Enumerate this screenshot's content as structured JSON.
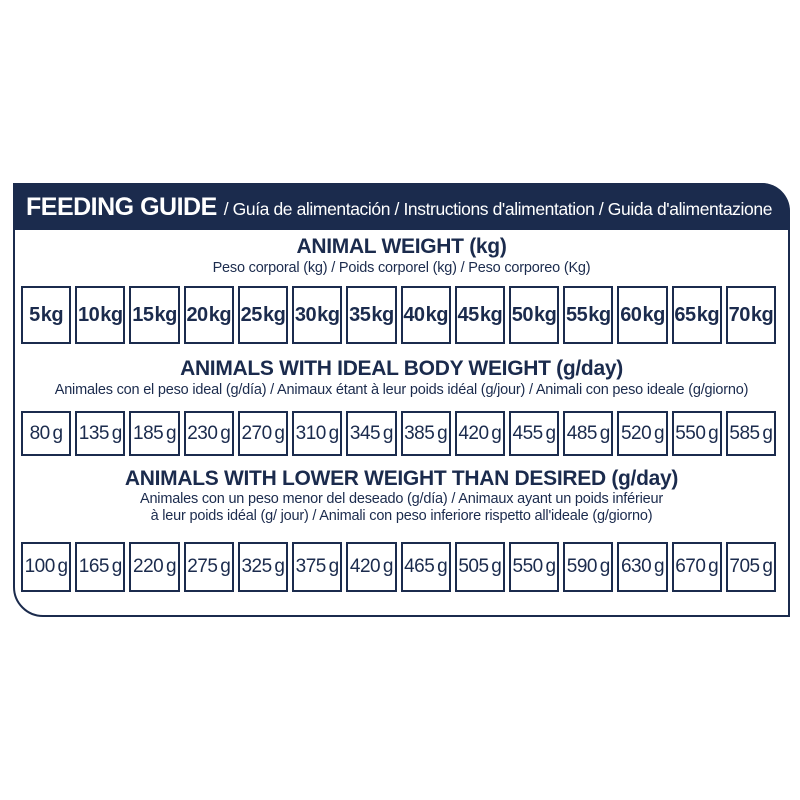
{
  "colors": {
    "navy": "#1b2b4d",
    "background": "#ffffff"
  },
  "header": {
    "title": "FEEDING GUIDE",
    "translations": "/ Guía de alimentación / Instructions d'alimentation / Guida d'alimentazione"
  },
  "animal_weight": {
    "title": "ANIMAL WEIGHT (kg)",
    "subtitle": "Peso corporal (kg) / Poids corporel (kg) / Peso corporeo (Kg)",
    "values": [
      "5 kg",
      "10 kg",
      "15 kg",
      "20 kg",
      "25 kg",
      "30 kg",
      "35 kg",
      "40 kg",
      "45 kg",
      "50 kg",
      "55 kg",
      "60 kg",
      "65 kg",
      "70 kg"
    ]
  },
  "ideal_body_weight": {
    "title": "ANIMALS WITH IDEAL BODY WEIGHT (g/day)",
    "subtitle": "Animales con el peso ideal (g/día) / Animaux étant à leur poids idéal (g/jour) / Animali con peso ideale (g/giorno)",
    "values": [
      "80 g",
      "135 g",
      "185 g",
      "230 g",
      "270 g",
      "310 g",
      "345 g",
      "385 g",
      "420 g",
      "455 g",
      "485 g",
      "520 g",
      "550 g",
      "585 g"
    ]
  },
  "lower_weight": {
    "title": "ANIMALS WITH LOWER WEIGHT THAN DESIRED (g/day)",
    "subtitle_line1": "Animales con un peso menor del deseado (g/día) / Animaux ayant un poids inférieur",
    "subtitle_line2": "à leur poids idéal (g/ jour) / Animali con peso inferiore rispetto all'ideale (g/giorno)",
    "values": [
      "100 g",
      "165 g",
      "220 g",
      "275 g",
      "325 g",
      "375 g",
      "420 g",
      "465 g",
      "505 g",
      "550 g",
      "590 g",
      "630 g",
      "670 g",
      "705 g"
    ]
  }
}
